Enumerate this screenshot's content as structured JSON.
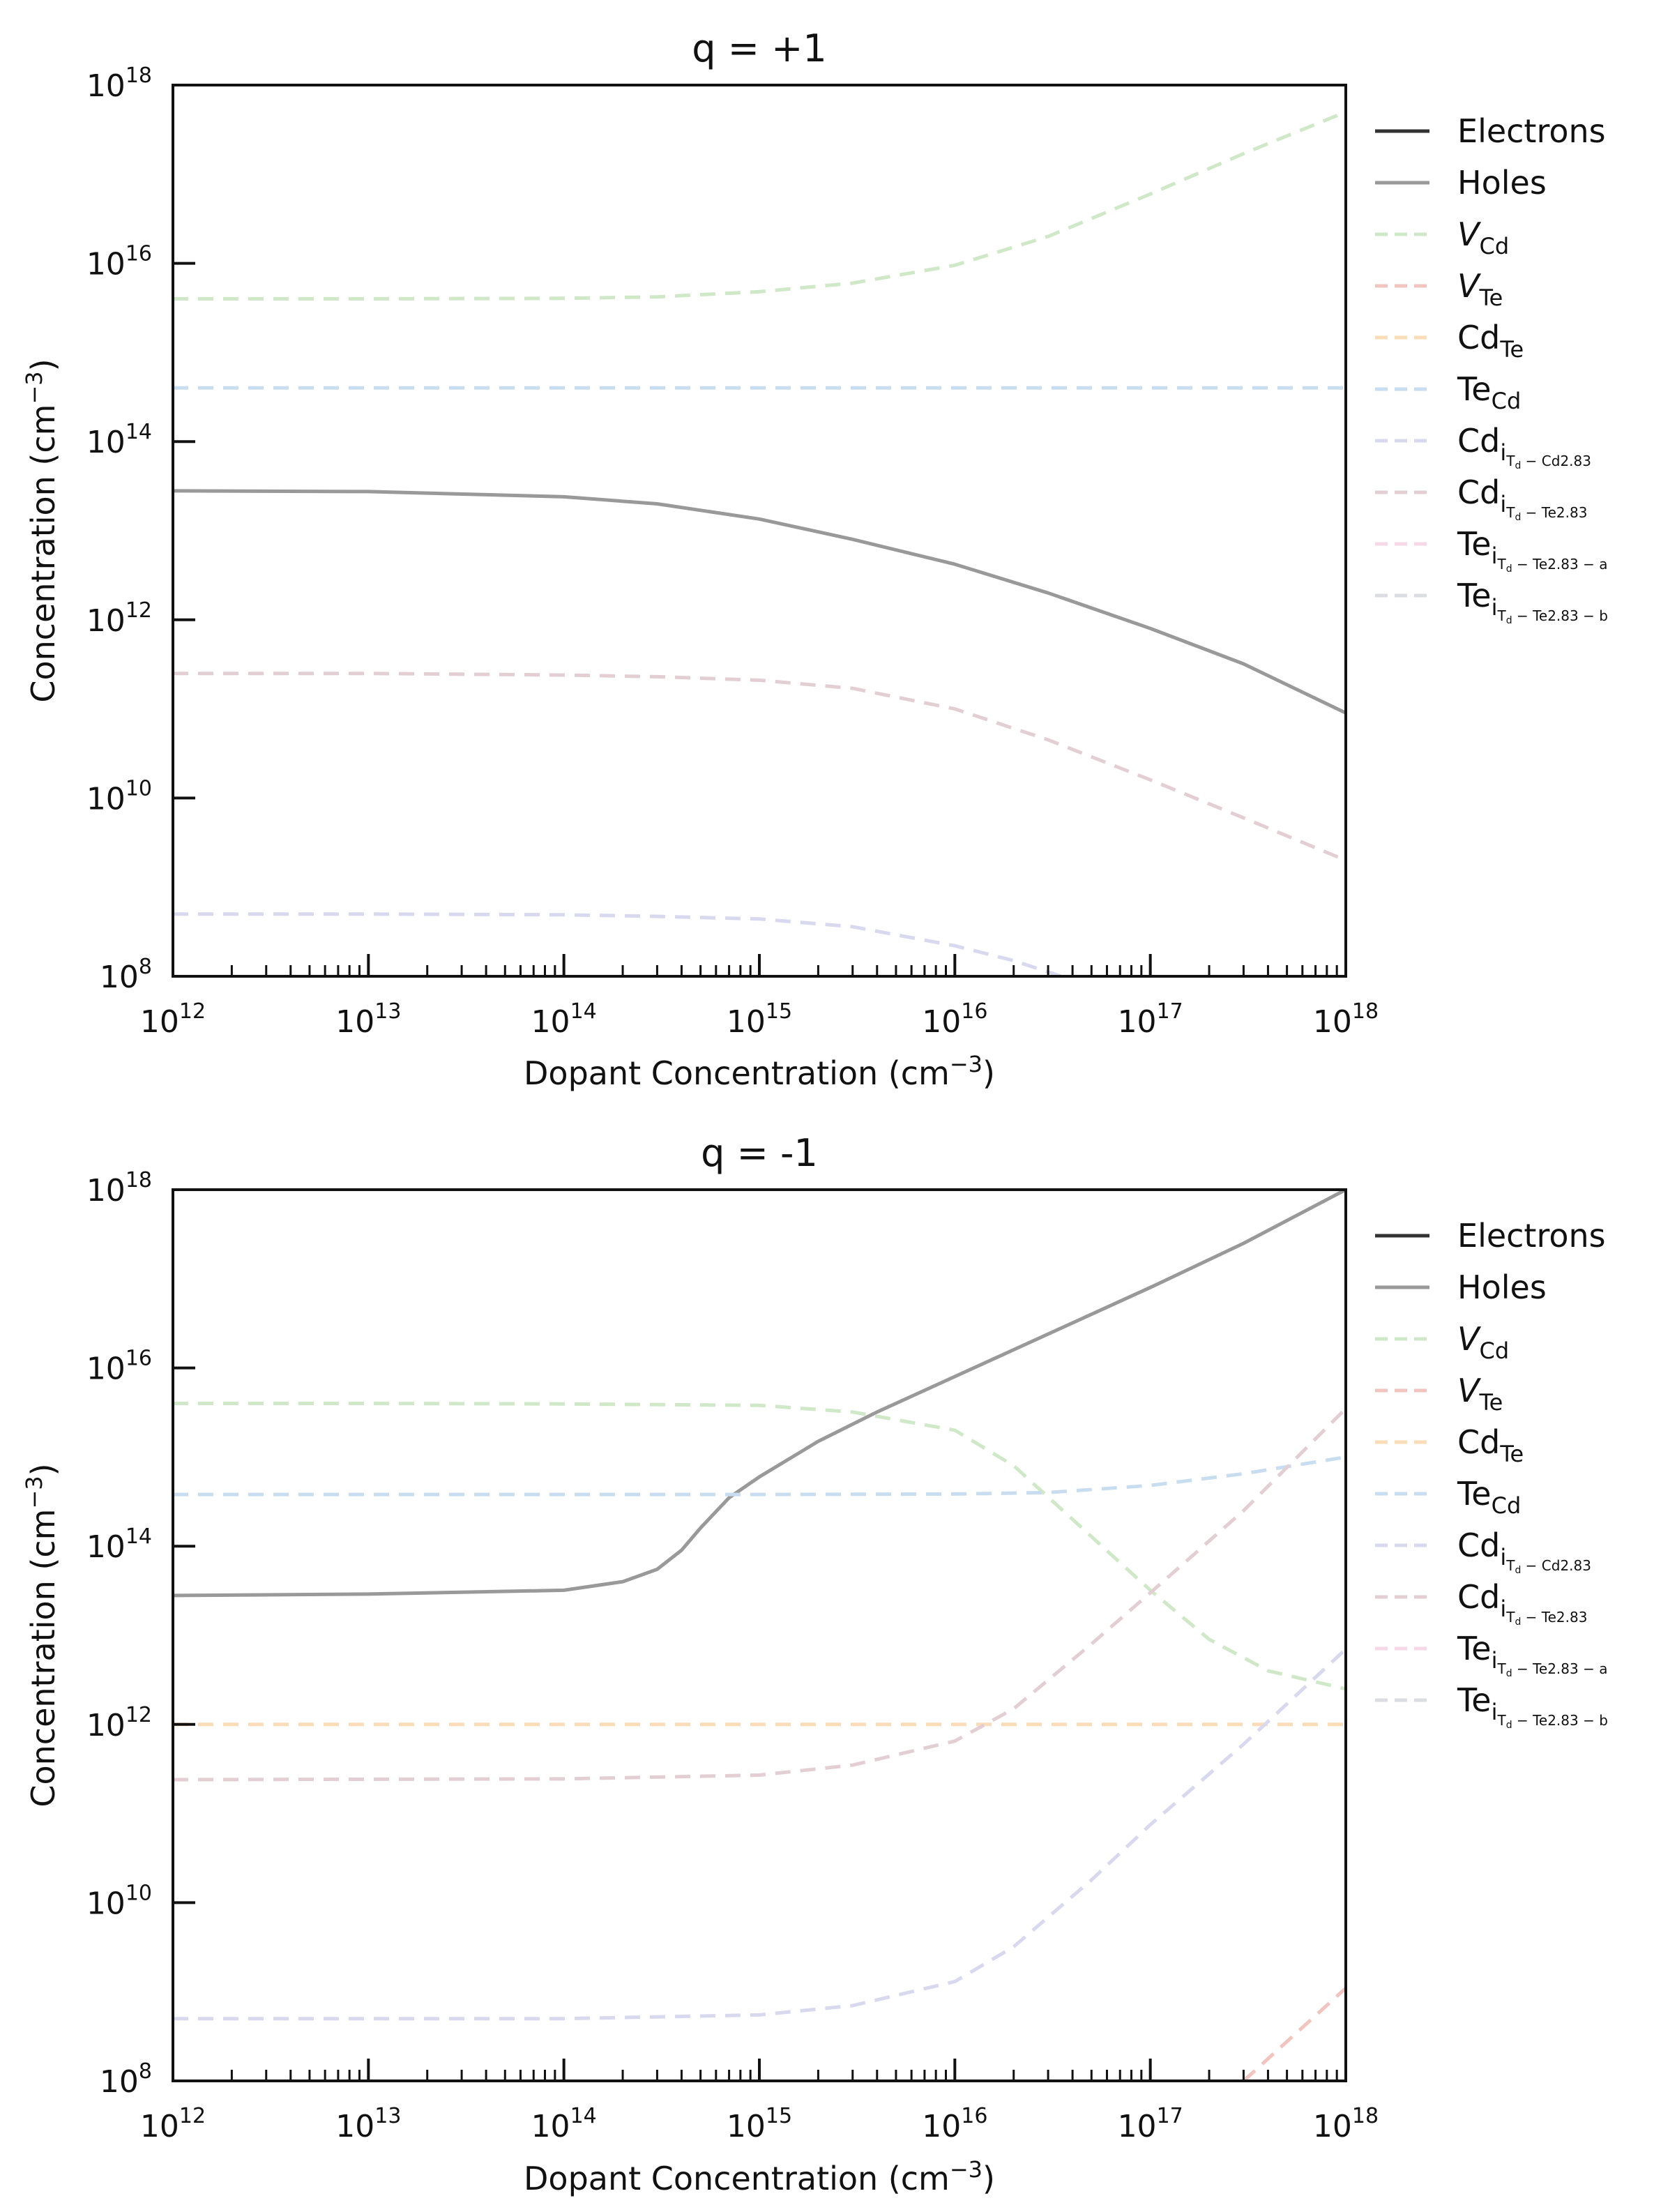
{
  "chart_data": [
    {
      "type": "line",
      "title": "q = +1",
      "xlabel": "Dopant Concentration (cm",
      "xlabel_sup": "−3",
      "xlabel_end": ")",
      "ylabel": "Concentration (cm",
      "ylabel_sup": "−3",
      "ylabel_end": ")",
      "x_scale": "log",
      "y_scale": "log",
      "xlim": [
        1000000000000.0,
        1e+18
      ],
      "ylim": [
        100000000.0,
        1e+18
      ],
      "x_ticks": [
        {
          "base": "10",
          "exp": "12"
        },
        {
          "base": "10",
          "exp": "13"
        },
        {
          "base": "10",
          "exp": "14"
        },
        {
          "base": "10",
          "exp": "15"
        },
        {
          "base": "10",
          "exp": "16"
        },
        {
          "base": "10",
          "exp": "17"
        },
        {
          "base": "10",
          "exp": "18"
        }
      ],
      "y_ticks": [
        {
          "base": "10",
          "exp": "8"
        },
        {
          "base": "10",
          "exp": "10"
        },
        {
          "base": "10",
          "exp": "12"
        },
        {
          "base": "10",
          "exp": "14"
        },
        {
          "base": "10",
          "exp": "16"
        },
        {
          "base": "10",
          "exp": "18"
        }
      ],
      "grid": false,
      "legend_placement": "outside-right",
      "legend": [
        {
          "base": "Electrons",
          "sub": "",
          "color": "#333333",
          "dash": false
        },
        {
          "base": "Holes",
          "sub": "",
          "color": "#999999",
          "dash": false
        },
        {
          "base": "V",
          "sub": "Cd",
          "italic": true,
          "color": "#cfe8c7",
          "dash": true
        },
        {
          "base": "V",
          "sub": "Te",
          "italic": true,
          "color": "#f2c4c0",
          "dash": true
        },
        {
          "base": "Cd",
          "sub": "Te",
          "color": "#fbdcb8",
          "dash": true
        },
        {
          "base": "Te",
          "sub": "Cd",
          "color": "#c8ddef",
          "dash": true
        },
        {
          "base": "Cd",
          "sub": "i",
          "sub2": "T",
          "sub3": "d",
          "tail": " − Cd2.83",
          "color": "#d8d8ef",
          "dash": true
        },
        {
          "base": "Cd",
          "sub": "i",
          "sub2": "T",
          "sub3": "d",
          "tail": " − Te2.83",
          "color": "#e3cfd3",
          "dash": true
        },
        {
          "base": "Te",
          "sub": "i",
          "sub2": "T",
          "sub3": "d",
          "tail": " − Te2.83 − a",
          "color": "#f6d8e6",
          "dash": true
        },
        {
          "base": "Te",
          "sub": "i",
          "sub2": "T",
          "sub3": "d",
          "tail": " − Te2.83 − b",
          "color": "#dcdde3",
          "dash": true
        }
      ],
      "series": [
        {
          "color": "#999999",
          "dash": false,
          "x": [
            1000000000000.0,
            10000000000000.0,
            100000000000000.0,
            300000000000000.0,
            1000000000000000.0,
            3000000000000000.0,
            1e+16,
            3e+16,
            1e+17,
            3e+17,
            1e+18
          ],
          "y": [
            28000000000000.0,
            27500000000000.0,
            24000000000000.0,
            20000000000000.0,
            13500000000000.0,
            8000000000000.0,
            4200000000000.0,
            2000000000000.0,
            800000000000.0,
            320000000000.0,
            90000000000.0
          ]
        },
        {
          "color": "#cfe8c7",
          "dash": true,
          "x": [
            1000000000000.0,
            10000000000000.0,
            100000000000000.0,
            300000000000000.0,
            1000000000000000.0,
            3000000000000000.0,
            1e+16,
            3e+16,
            1e+17,
            3e+17,
            1e+18
          ],
          "y": [
            4000000000000000.0,
            4000000000000000.0,
            4050000000000000.0,
            4200000000000000.0,
            4800000000000000.0,
            6000000000000000.0,
            9500000000000000.0,
            2e+16,
            6e+16,
            1.7e+17,
            5e+17
          ]
        },
        {
          "color": "#c8ddef",
          "dash": true,
          "x": [
            1000000000000.0,
            1e+18
          ],
          "y": [
            400000000000000.0,
            400000000000000.0
          ]
        },
        {
          "color": "#e3cfd3",
          "dash": true,
          "x": [
            1000000000000.0,
            10000000000000.0,
            100000000000000.0,
            300000000000000.0,
            1000000000000000.0,
            3000000000000000.0,
            1e+16,
            3e+16,
            1e+17,
            3e+17,
            1e+18
          ],
          "y": [
            250000000000.0,
            250000000000.0,
            240000000000.0,
            230000000000.0,
            210000000000.0,
            170000000000.0,
            100000000000.0,
            45000000000.0,
            16000000000.0,
            6000000000.0,
            2000000000.0
          ]
        },
        {
          "color": "#d8d8ef",
          "dash": true,
          "x": [
            1000000000000.0,
            10000000000000.0,
            100000000000000.0,
            300000000000000.0,
            1000000000000000.0,
            3000000000000000.0,
            1e+16,
            2e+16,
            3.5e+16
          ],
          "y": [
            500000000.0,
            500000000.0,
            490000000.0,
            470000000.0,
            440000000.0,
            360000000.0,
            220000000.0,
            150000000.0,
            100000000.0
          ]
        }
      ]
    },
    {
      "type": "line",
      "title": "q = -1",
      "xlabel": "Dopant Concentration (cm",
      "xlabel_sup": "−3",
      "xlabel_end": ")",
      "ylabel": "Concentration (cm",
      "ylabel_sup": "−3",
      "ylabel_end": ")",
      "x_scale": "log",
      "y_scale": "log",
      "xlim": [
        1000000000000.0,
        1e+18
      ],
      "ylim": [
        100000000.0,
        1e+18
      ],
      "x_ticks": [
        {
          "base": "10",
          "exp": "12"
        },
        {
          "base": "10",
          "exp": "13"
        },
        {
          "base": "10",
          "exp": "14"
        },
        {
          "base": "10",
          "exp": "15"
        },
        {
          "base": "10",
          "exp": "16"
        },
        {
          "base": "10",
          "exp": "17"
        },
        {
          "base": "10",
          "exp": "18"
        }
      ],
      "y_ticks": [
        {
          "base": "10",
          "exp": "8"
        },
        {
          "base": "10",
          "exp": "10"
        },
        {
          "base": "10",
          "exp": "12"
        },
        {
          "base": "10",
          "exp": "14"
        },
        {
          "base": "10",
          "exp": "16"
        },
        {
          "base": "10",
          "exp": "18"
        }
      ],
      "grid": false,
      "legend_placement": "outside-right",
      "legend": [
        {
          "base": "Electrons",
          "sub": "",
          "color": "#333333",
          "dash": false
        },
        {
          "base": "Holes",
          "sub": "",
          "color": "#999999",
          "dash": false
        },
        {
          "base": "V",
          "sub": "Cd",
          "italic": true,
          "color": "#cfe8c7",
          "dash": true
        },
        {
          "base": "V",
          "sub": "Te",
          "italic": true,
          "color": "#f2c4c0",
          "dash": true
        },
        {
          "base": "Cd",
          "sub": "Te",
          "color": "#fbdcb8",
          "dash": true
        },
        {
          "base": "Te",
          "sub": "Cd",
          "color": "#c8ddef",
          "dash": true
        },
        {
          "base": "Cd",
          "sub": "i",
          "sub2": "T",
          "sub3": "d",
          "tail": " − Cd2.83",
          "color": "#d8d8ef",
          "dash": true
        },
        {
          "base": "Cd",
          "sub": "i",
          "sub2": "T",
          "sub3": "d",
          "tail": " − Te2.83",
          "color": "#e3cfd3",
          "dash": true
        },
        {
          "base": "Te",
          "sub": "i",
          "sub2": "T",
          "sub3": "d",
          "tail": " − Te2.83 − a",
          "color": "#f6d8e6",
          "dash": true
        },
        {
          "base": "Te",
          "sub": "i",
          "sub2": "T",
          "sub3": "d",
          "tail": " − Te2.83 − b",
          "color": "#dcdde3",
          "dash": true
        }
      ],
      "series": [
        {
          "color": "#999999",
          "dash": false,
          "x": [
            1000000000000.0,
            10000000000000.0,
            100000000000000.0,
            200000000000000.0,
            300000000000000.0,
            400000000000000.0,
            500000000000000.0,
            700000000000000.0,
            1000000000000000.0,
            2000000000000000.0,
            4000000000000000.0,
            1e+16,
            3e+16,
            1e+17,
            3e+17,
            1e+18
          ],
          "y": [
            28000000000000.0,
            29000000000000.0,
            32000000000000.0,
            40000000000000.0,
            55000000000000.0,
            90000000000000.0,
            160000000000000.0,
            350000000000000.0,
            600000000000000.0,
            1500000000000000.0,
            3200000000000000.0,
            8000000000000000.0,
            2.4e+16,
            8e+16,
            2.5e+17,
            1e+18
          ]
        },
        {
          "color": "#cfe8c7",
          "dash": true,
          "x": [
            1000000000000.0,
            10000000000000.0,
            100000000000000.0,
            1000000000000000.0,
            3000000000000000.0,
            1e+16,
            2e+16,
            4e+16,
            1e+17,
            2e+17,
            4e+17,
            1e+18
          ],
          "y": [
            4000000000000000.0,
            4000000000000000.0,
            3950000000000000.0,
            3800000000000000.0,
            3200000000000000.0,
            2000000000000000.0,
            800000000000000.0,
            200000000000000.0,
            32000000000000.0,
            9000000000000.0,
            4000000000000.0,
            2500000000000.0
          ]
        },
        {
          "color": "#c8ddef",
          "dash": true,
          "x": [
            1000000000000.0,
            1000000000000000.0,
            1e+16,
            3e+16,
            1e+17,
            3e+17,
            1e+18
          ],
          "y": [
            380000000000000.0,
            380000000000000.0,
            385000000000000.0,
            400000000000000.0,
            480000000000000.0,
            650000000000000.0,
            1000000000000000.0
          ]
        },
        {
          "color": "#fbdcb8",
          "dash": true,
          "x": [
            1000000000000.0,
            1e+18
          ],
          "y": [
            1000000000000.0,
            1000000000000.0
          ]
        },
        {
          "color": "#e3cfd3",
          "dash": true,
          "x": [
            1000000000000.0,
            100000000000000.0,
            1000000000000000.0,
            3000000000000000.0,
            1e+16,
            2e+16,
            5e+16,
            1e+17,
            3e+17,
            1e+18
          ],
          "y": [
            240000000000.0,
            245000000000.0,
            270000000000.0,
            350000000000.0,
            650000000000.0,
            1500000000000.0,
            8000000000000.0,
            30000000000000.0,
            250000000000000.0,
            3500000000000000.0
          ]
        },
        {
          "color": "#d8d8ef",
          "dash": true,
          "x": [
            1000000000000.0,
            100000000000000.0,
            1000000000000000.0,
            3000000000000000.0,
            1e+16,
            2e+16,
            5e+16,
            1e+17,
            3e+17,
            1e+18
          ],
          "y": [
            500000000.0,
            500000000.0,
            550000000.0,
            700000000.0,
            1300000000.0,
            3200000000.0,
            18000000000.0,
            75000000000.0,
            600000000000.0,
            7000000000000.0
          ]
        },
        {
          "color": "#f2c4c0",
          "dash": true,
          "x": [
            3e+17,
            1e+18
          ],
          "y": [
            100000000.0,
            1100000000.0
          ]
        }
      ]
    }
  ]
}
